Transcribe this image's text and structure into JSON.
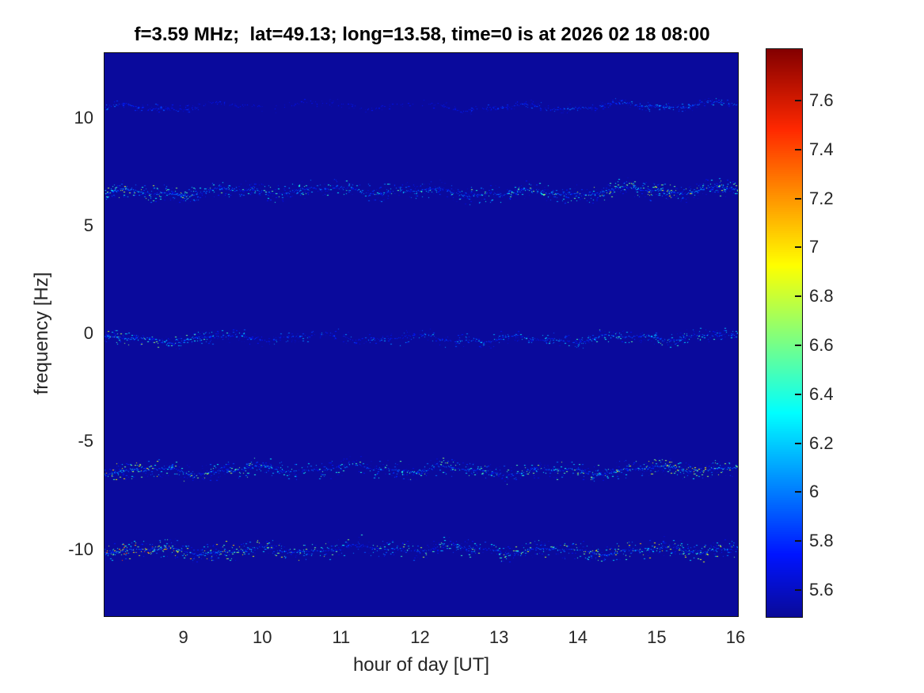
{
  "chart_data": {
    "type": "heatmap",
    "title": "f=3.59 MHz;  lat=49.13; long=13.58, time=0 is at 2026 02 18 08:00",
    "xlabel": "hour of day [UT]",
    "ylabel": "frequency [Hz]",
    "xlim": [
      8,
      16.03
    ],
    "ylim": [
      -13.1,
      13.0
    ],
    "x_ticks": [
      9,
      10,
      11,
      12,
      13,
      14,
      15,
      16
    ],
    "y_ticks": [
      10,
      5,
      0,
      -5,
      -10
    ],
    "grid": false,
    "colormap": "jet",
    "background_value": 5.5,
    "background_color": "#10109c",
    "colorbar": {
      "position": "right",
      "clim": [
        5.49,
        7.81
      ],
      "ticks": [
        7.6,
        7.4,
        7.2,
        7,
        6.8,
        6.6,
        6.4,
        6.2,
        6,
        5.8,
        5.6
      ]
    },
    "traces": [
      {
        "name": "spectral-line-+10.5Hz",
        "freq_hz": 10.55,
        "width_hz": 0.15,
        "wander_hz": 0.12,
        "density": 0.45,
        "peak_value": 6.35,
        "profile_hours": [
          8,
          9,
          10,
          11,
          12,
          13,
          14,
          15,
          16
        ],
        "profile": [
          0.6,
          0.45,
          0.25,
          0.3,
          0.25,
          0.5,
          0.65,
          0.8,
          0.85
        ]
      },
      {
        "name": "spectral-line-+6.6Hz",
        "freq_hz": 6.6,
        "width_hz": 0.28,
        "wander_hz": 0.12,
        "density": 0.95,
        "peak_value": 7.05,
        "profile_hours": [
          8,
          9,
          10,
          11,
          12,
          13,
          14,
          15,
          16
        ],
        "profile": [
          1,
          0.85,
          0.7,
          0.65,
          0.7,
          0.75,
          0.85,
          0.95,
          1
        ]
      },
      {
        "name": "spectral-line-0Hz-carrier",
        "freq_hz": -0.2,
        "width_hz": 0.22,
        "wander_hz": 0.12,
        "density": 0.8,
        "peak_value": 6.9,
        "profile_hours": [
          8,
          9,
          10,
          11,
          12,
          13,
          14,
          15,
          16
        ],
        "profile": [
          0.95,
          0.85,
          0.5,
          0.45,
          0.5,
          0.6,
          0.75,
          0.8,
          0.7
        ]
      },
      {
        "name": "spectral-line--6.3Hz",
        "freq_hz": -6.3,
        "width_hz": 0.28,
        "wander_hz": 0.12,
        "density": 0.95,
        "peak_value": 7.1,
        "profile_hours": [
          8,
          9,
          10,
          11,
          12,
          13,
          14,
          15,
          16
        ],
        "profile": [
          1,
          0.85,
          0.8,
          0.65,
          0.75,
          0.7,
          0.85,
          0.95,
          0.95
        ]
      },
      {
        "name": "spectral-line--10Hz",
        "freq_hz": -10.0,
        "width_hz": 0.3,
        "wander_hz": 0.12,
        "density": 0.95,
        "peak_value": 7.45,
        "profile_hours": [
          8,
          9,
          10,
          11,
          12,
          13,
          14,
          15,
          16
        ],
        "profile": [
          1,
          0.9,
          0.8,
          0.6,
          0.65,
          0.7,
          0.75,
          0.85,
          0.9
        ]
      }
    ]
  }
}
